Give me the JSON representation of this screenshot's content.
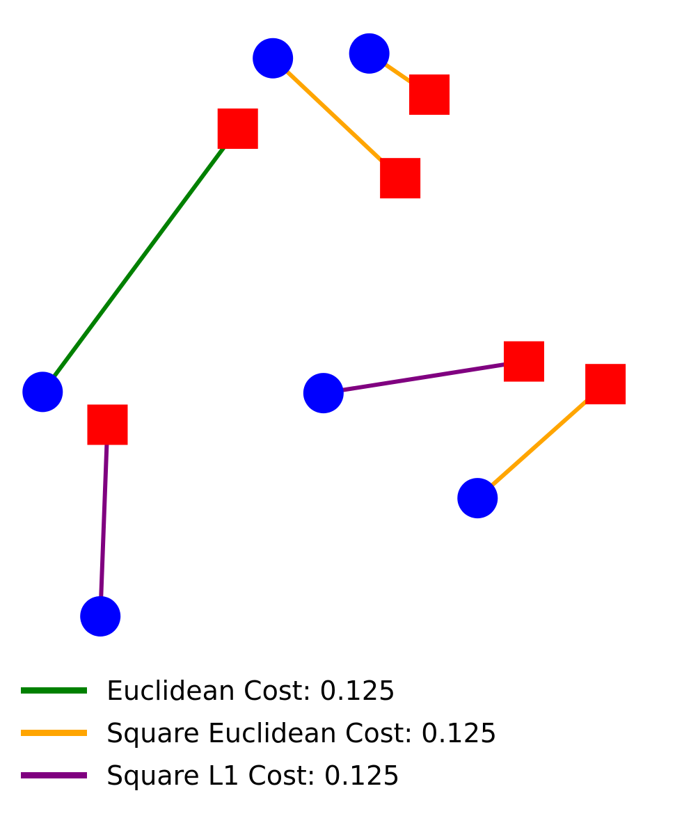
{
  "chart_data": {
    "type": "scatter",
    "title": "",
    "xlabel": "",
    "ylabel": "",
    "xlim": [
      0,
      1
    ],
    "ylim": [
      0,
      1
    ],
    "grid": false,
    "axes_visible": false,
    "legend_placement": "bottom-left",
    "sources": {
      "marker": "circle",
      "color": "#0000ff",
      "points": [
        {
          "x": 0.005,
          "y": 0.425
        },
        {
          "x": 0.392,
          "y": 0.984
        },
        {
          "x": 0.554,
          "y": 0.992
        },
        {
          "x": 0.477,
          "y": 0.423
        },
        {
          "x": 0.736,
          "y": 0.247
        },
        {
          "x": 0.102,
          "y": 0.049
        }
      ]
    },
    "targets": {
      "marker": "square",
      "color": "#ff0000",
      "points": [
        {
          "x": 0.333,
          "y": 0.866
        },
        {
          "x": 0.606,
          "y": 0.783
        },
        {
          "x": 0.655,
          "y": 0.923
        },
        {
          "x": 0.814,
          "y": 0.476
        },
        {
          "x": 0.951,
          "y": 0.438
        },
        {
          "x": 0.114,
          "y": 0.37
        }
      ]
    },
    "series": [
      {
        "name": "Euclidean Cost: 0.125",
        "color": "#008000",
        "pairs": [
          {
            "from": 0,
            "to": 0
          }
        ]
      },
      {
        "name": "Square Euclidean Cost: 0.125",
        "color": "#ffa500",
        "pairs": [
          {
            "from": 1,
            "to": 1
          },
          {
            "from": 2,
            "to": 2
          },
          {
            "from": 4,
            "to": 4
          }
        ]
      },
      {
        "name": "Square L1 Cost: 0.125",
        "color": "#800080",
        "pairs": [
          {
            "from": 3,
            "to": 3
          },
          {
            "from": 5,
            "to": 5
          }
        ]
      }
    ]
  }
}
